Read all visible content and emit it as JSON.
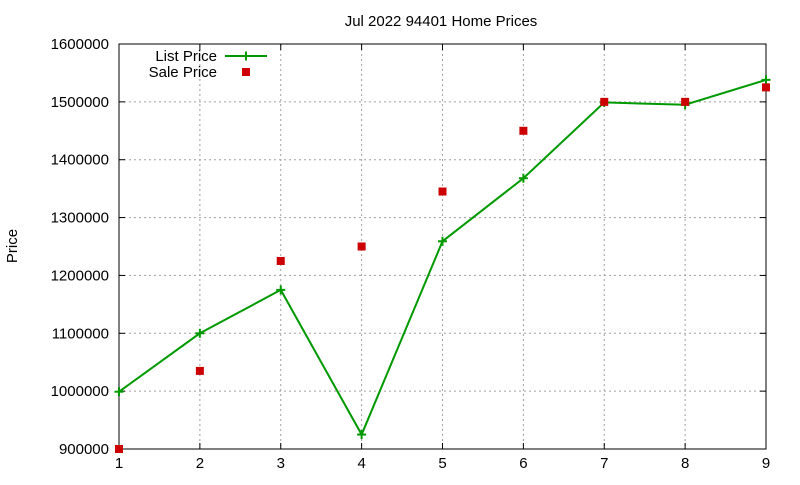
{
  "chart_data": {
    "type": "line",
    "title": "Jul 2022 94401 Home Prices",
    "xlabel": "",
    "ylabel": "Price",
    "x": [
      1,
      2,
      3,
      4,
      5,
      6,
      7,
      8,
      9
    ],
    "xlim": [
      1,
      9
    ],
    "ylim": [
      900000,
      1600000
    ],
    "xticks": [
      "1",
      "2",
      "3",
      "4",
      "5",
      "6",
      "7",
      "8",
      "9"
    ],
    "yticks": [
      "900000",
      "1000000",
      "1100000",
      "1200000",
      "1300000",
      "1400000",
      "1500000",
      "1600000"
    ],
    "grid": true,
    "legend_position": "top-left",
    "series": [
      {
        "name": "List Price",
        "style": "line+cross",
        "color": "#009900",
        "values": [
          999000,
          1100000,
          1175000,
          925000,
          1259000,
          1368000,
          1499000,
          1495000,
          1538000
        ]
      },
      {
        "name": "Sale Price",
        "style": "square",
        "color": "#cc0000",
        "values": [
          900000,
          1035000,
          1225000,
          1250000,
          1345000,
          1450000,
          1500000,
          1500000,
          1525000
        ]
      }
    ]
  }
}
